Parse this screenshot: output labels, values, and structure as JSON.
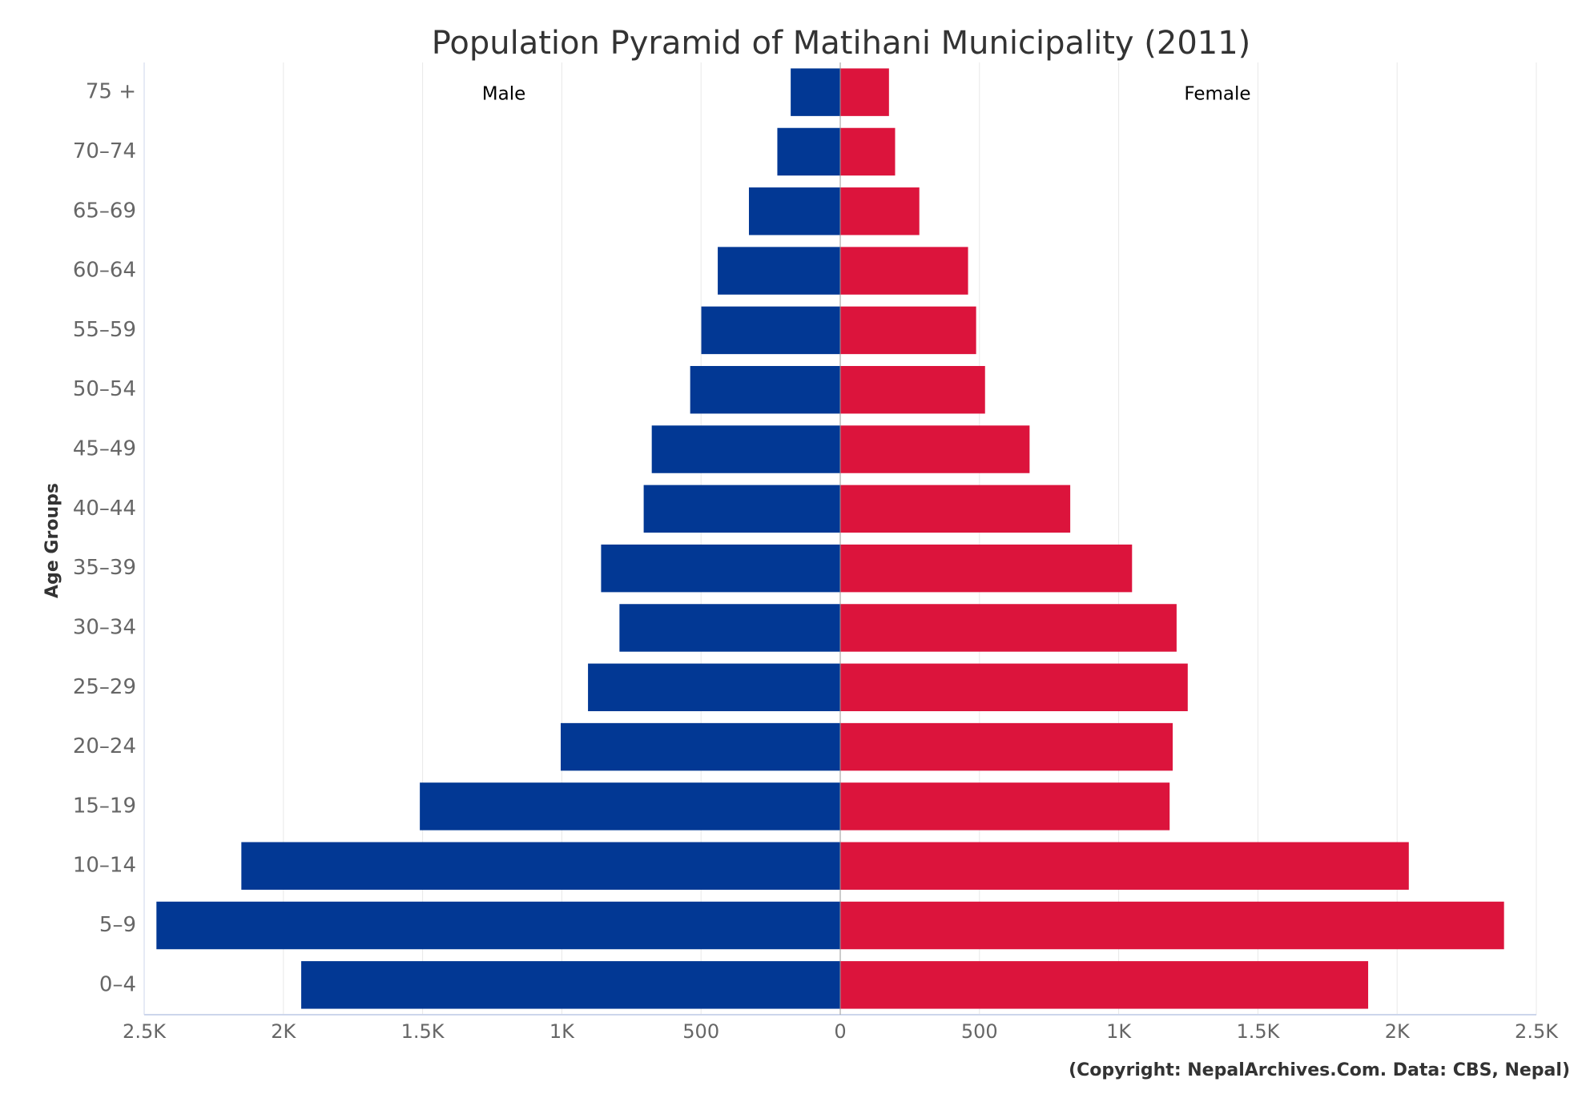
{
  "chart_data": {
    "type": "pyramid",
    "title": "Population Pyramid of Matihani Municipality (2011)",
    "ylabel": "Age Groups",
    "source": "(Copyright: NepalArchives.Com. Data: CBS, Nepal)",
    "categories": [
      "75 +",
      "70–74",
      "65–69",
      "60–64",
      "55–59",
      "50–54",
      "45–49",
      "40–44",
      "35–39",
      "30–34",
      "25–29",
      "20–24",
      "15–19",
      "10–14",
      "5–9",
      "0–4"
    ],
    "series": [
      {
        "name": "Male",
        "color": "#023894",
        "values": [
          -178,
          -226,
          -328,
          -440,
          -499,
          -539,
          -677,
          -706,
          -859,
          -793,
          -906,
          -1004,
          -1510,
          -2151,
          -2456,
          -1936
        ]
      },
      {
        "name": "Female",
        "color": "#dc143c",
        "values": [
          175,
          197,
          284,
          459,
          488,
          520,
          680,
          826,
          1048,
          1208,
          1248,
          1194,
          1183,
          2042,
          2384,
          1896
        ]
      }
    ],
    "xlim": [
      -2500,
      2500
    ],
    "xticks": [
      {
        "value": -2500,
        "label": "2.5K"
      },
      {
        "value": -2000,
        "label": "2K"
      },
      {
        "value": -1500,
        "label": "1.5K"
      },
      {
        "value": -1000,
        "label": "1K"
      },
      {
        "value": -500,
        "label": "500"
      },
      0,
      500,
      {
        "value": 1000,
        "label": "1K"
      },
      {
        "value": 1500,
        "label": "1.5K"
      },
      {
        "value": 2000,
        "label": "2K"
      },
      {
        "value": 2500,
        "label": "2.5K"
      }
    ],
    "grid": true
  }
}
